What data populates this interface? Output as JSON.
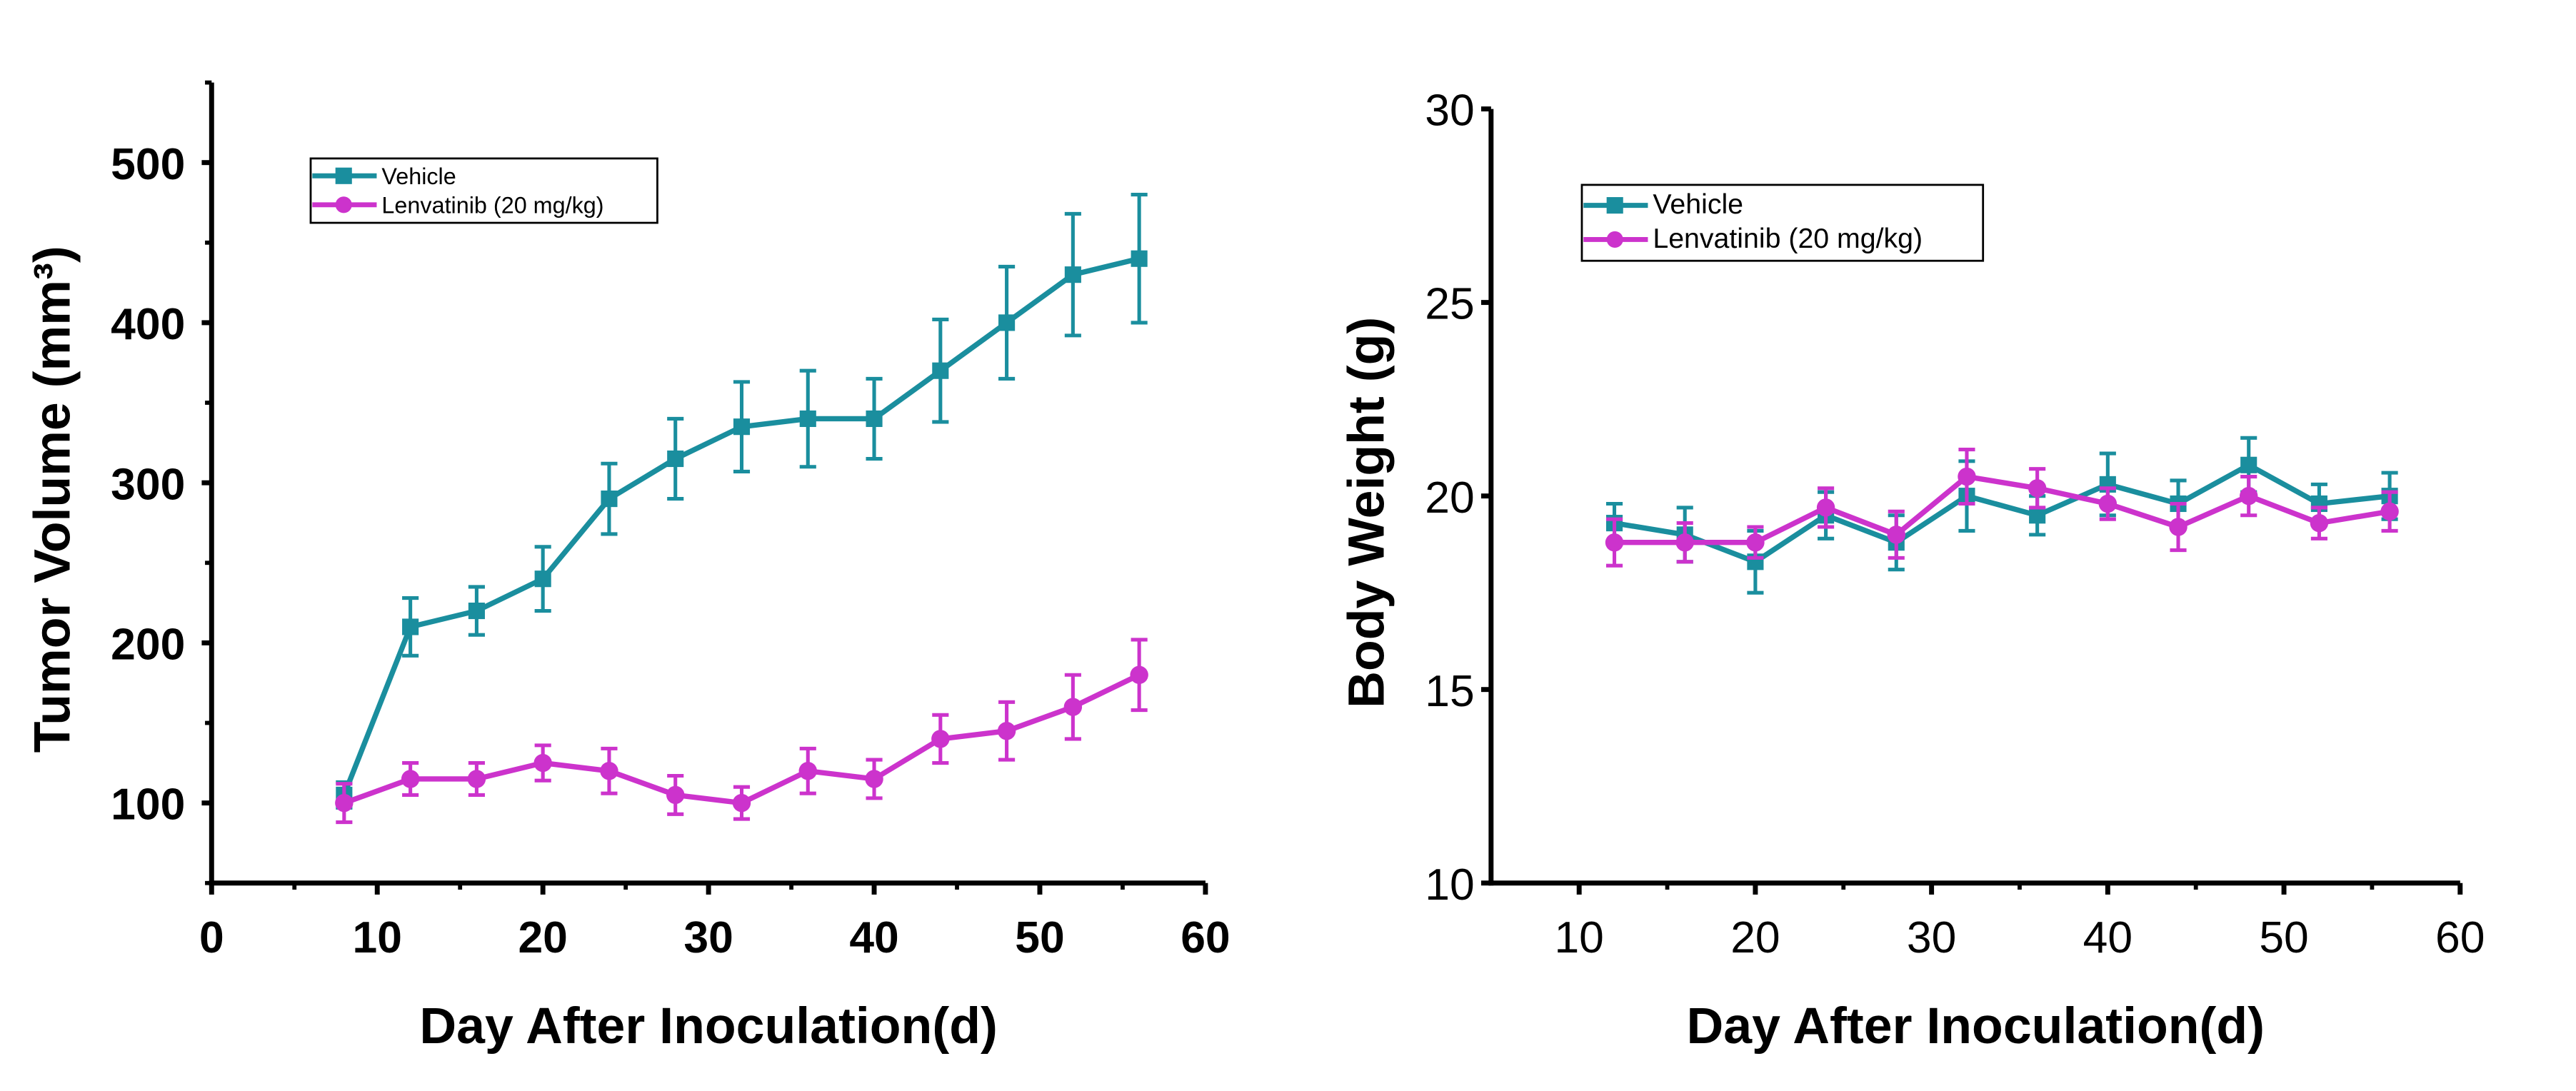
{
  "colors": {
    "vehicle": "#1a8e9e",
    "lenvatinib": "#cc33cc",
    "axis": "#000000"
  },
  "chart_data": [
    {
      "type": "line",
      "title": "",
      "xlabel": "Day After Inoculation(d)",
      "ylabel": "Tumor Volume (mm³)",
      "xlim": [
        0,
        60
      ],
      "ylim": [
        50,
        550
      ],
      "xticks": [
        0,
        10,
        20,
        30,
        40,
        50,
        60
      ],
      "yticks": [
        100,
        200,
        300,
        400,
        500
      ],
      "grid": false,
      "legend_position": "top-left",
      "x": [
        8,
        12,
        16,
        20,
        24,
        28,
        32,
        36,
        40,
        44,
        48,
        52,
        56
      ],
      "series": [
        {
          "name": "Vehicle",
          "marker": "square",
          "color": "#1a8e9e",
          "values": [
            105,
            210,
            220,
            240,
            290,
            315,
            335,
            340,
            340,
            370,
            400,
            430,
            440
          ],
          "errors": [
            8,
            18,
            15,
            20,
            22,
            25,
            28,
            30,
            25,
            32,
            35,
            38,
            40
          ]
        },
        {
          "name": "Lenvatinib (20 mg/kg)",
          "marker": "circle",
          "color": "#cc33cc",
          "values": [
            100,
            115,
            115,
            125,
            120,
            105,
            100,
            120,
            115,
            140,
            145,
            160,
            180
          ],
          "errors": [
            12,
            10,
            10,
            11,
            14,
            12,
            10,
            14,
            12,
            15,
            18,
            20,
            22
          ]
        }
      ]
    },
    {
      "type": "line",
      "title": "",
      "xlabel": "Day After Inoculation(d)",
      "ylabel": "Body Weight (g)",
      "xlim": [
        5,
        60
      ],
      "ylim": [
        10,
        30
      ],
      "xticks": [
        10,
        20,
        30,
        40,
        50,
        60
      ],
      "yticks": [
        10,
        15,
        20,
        25,
        30
      ],
      "grid": false,
      "legend_position": "top-left",
      "x": [
        12,
        16,
        20,
        24,
        28,
        32,
        36,
        40,
        44,
        48,
        52,
        56
      ],
      "series": [
        {
          "name": "Vehicle",
          "marker": "square",
          "color": "#1a8e9e",
          "values": [
            19.3,
            19.0,
            18.3,
            19.5,
            18.8,
            20.0,
            19.5,
            20.3,
            19.8,
            20.8,
            19.8,
            20.0
          ],
          "errors": [
            0.5,
            0.7,
            0.8,
            0.6,
            0.7,
            0.9,
            0.5,
            0.8,
            0.6,
            0.7,
            0.5,
            0.6
          ]
        },
        {
          "name": "Lenvatinib (20 mg/kg)",
          "marker": "circle",
          "color": "#cc33cc",
          "values": [
            18.8,
            18.8,
            18.8,
            19.7,
            19.0,
            20.5,
            20.2,
            19.8,
            19.2,
            20.0,
            19.3,
            19.6
          ],
          "errors": [
            0.6,
            0.5,
            0.4,
            0.5,
            0.6,
            0.7,
            0.5,
            0.4,
            0.6,
            0.5,
            0.4,
            0.5
          ]
        }
      ]
    }
  ]
}
